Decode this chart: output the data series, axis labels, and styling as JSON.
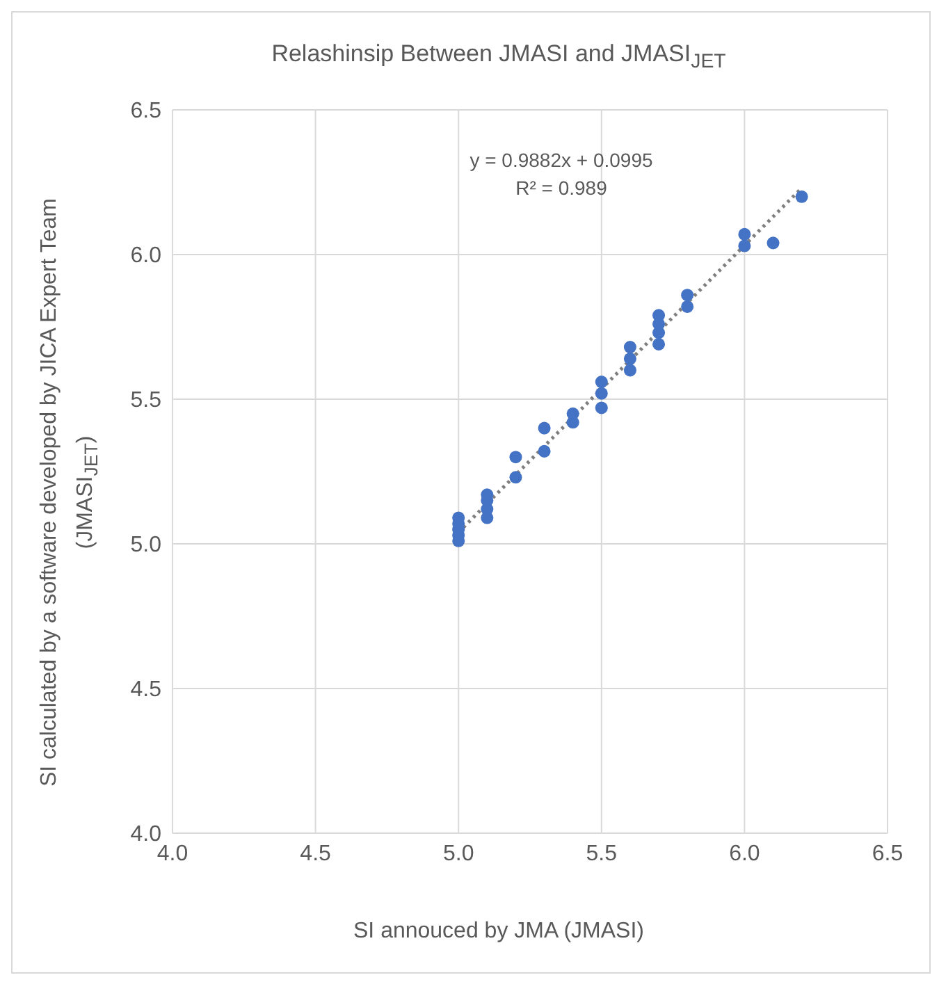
{
  "chart_data": {
    "type": "scatter",
    "title": "Relashinsip Between JMASI and JMASI$_{JET}$",
    "xlabel": "SI annouced by JMA (JMASI)",
    "ylabel": "SI calculated by a software developed  by JICA Expert Team (JMASI$_{JET}$)",
    "annotations": [
      "y = 0.9882x + 0.0995",
      "R² = 0.989"
    ],
    "series": [
      {
        "color": "#4472c4",
        "x": [
          5.0,
          5.0,
          5.0,
          5.0,
          5.0,
          5.1,
          5.1,
          5.1,
          5.1,
          5.2,
          5.2,
          5.3,
          5.3,
          5.4,
          5.4,
          5.5,
          5.5,
          5.5,
          5.6,
          5.6,
          5.6,
          5.7,
          5.7,
          5.7,
          5.7,
          5.8,
          5.8,
          6.0,
          6.0,
          6.1,
          6.2
        ],
        "values": [
          5.01,
          5.03,
          5.05,
          5.07,
          5.09,
          5.09,
          5.12,
          5.15,
          5.17,
          5.23,
          5.3,
          5.32,
          5.4,
          5.42,
          5.45,
          5.47,
          5.52,
          5.56,
          5.6,
          5.64,
          5.68,
          5.69,
          5.73,
          5.76,
          5.79,
          5.82,
          5.86,
          6.03,
          6.07,
          6.04,
          6.2
        ]
      },
      {
        "type": "line",
        "color": "#7f7f7f",
        "line_style": "dotted",
        "marker": "none",
        "x": [
          5.0,
          6.2
        ],
        "values": [
          5.04,
          6.23
        ]
      }
    ],
    "xlim": [
      4.0,
      6.5
    ],
    "xticks": [
      {
        "value": 4.0,
        "label": "4.0"
      },
      {
        "value": 4.5,
        "label": "4.5"
      },
      {
        "value": 5.0,
        "label": "5.0"
      },
      {
        "value": 5.5,
        "label": "5.5"
      },
      {
        "value": 6.0,
        "label": "6.0"
      },
      {
        "value": 6.5,
        "label": "6.5"
      }
    ],
    "ylim": [
      4.0,
      6.5
    ],
    "yticks": [
      {
        "value": 4.0,
        "label": "4.0"
      },
      {
        "value": 4.5,
        "label": "4.5"
      },
      {
        "value": 5.0,
        "label": "5.0"
      },
      {
        "value": 5.5,
        "label": "5.5"
      },
      {
        "value": 6.0,
        "label": "6.0"
      },
      {
        "value": 6.5,
        "label": "6.5"
      }
    ],
    "grid": true,
    "marker": "circle",
    "legend": false
  }
}
